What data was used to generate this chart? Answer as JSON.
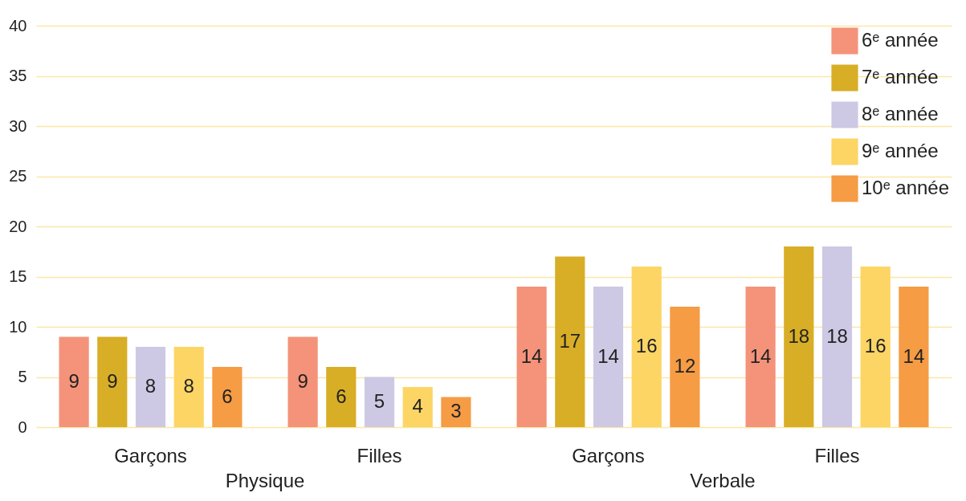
{
  "chart_data": {
    "type": "bar",
    "categories": [
      "Garçons",
      "Filles",
      "Garçons",
      "Filles"
    ],
    "annotations": [
      "Physique",
      "Verbale"
    ],
    "series": [
      {
        "name": "6ᵉ année",
        "color": "#f4937a",
        "values": [
          9,
          9,
          14,
          14
        ]
      },
      {
        "name": "7ᵉ année",
        "color": "#d8ae27",
        "values": [
          9,
          6,
          17,
          18
        ]
      },
      {
        "name": "8ᵉ année",
        "color": "#cdc9e4",
        "values": [
          8,
          5,
          14,
          18
        ]
      },
      {
        "name": "9ᵉ année",
        "color": "#fcd565",
        "values": [
          8,
          4,
          16,
          16
        ]
      },
      {
        "name": "10ᵉ année",
        "color": "#f59c45",
        "values": [
          6,
          3,
          12,
          14
        ]
      }
    ],
    "ylim": [
      0,
      40
    ],
    "yticks": [
      0,
      5,
      10,
      15,
      20,
      25,
      30,
      35,
      40
    ],
    "grid": "y",
    "legend": "top right",
    "data_labels": true
  }
}
